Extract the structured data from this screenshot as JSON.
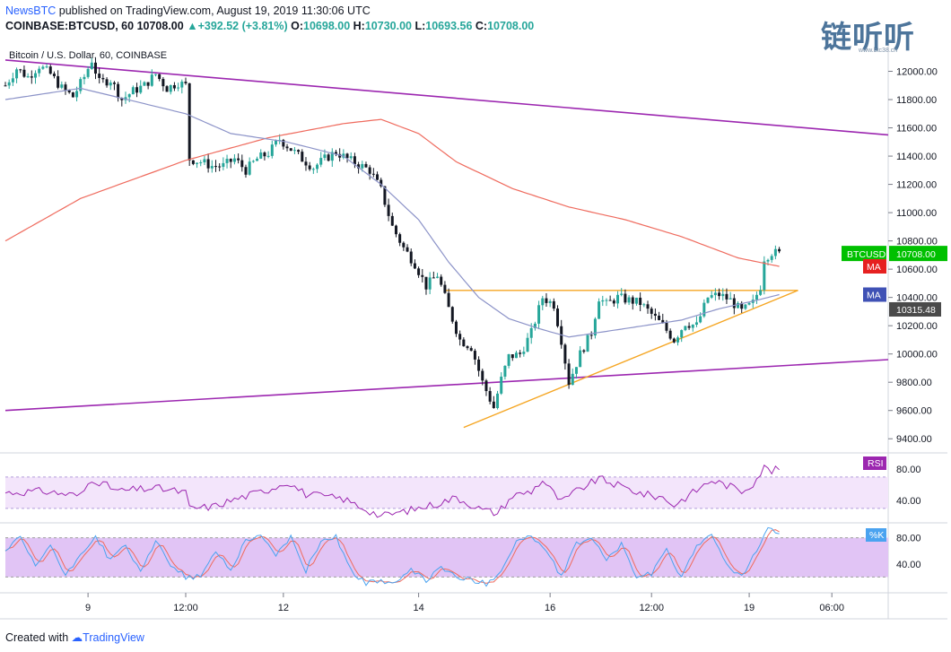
{
  "header": {
    "brand": "NewsBTC",
    "published": "published on TradingView.com, August 19, 2019 11:30:06 UTC",
    "symbol_line": "COINBASE:BTCUSD, 60",
    "price": "10708.00",
    "change": "+392.52 (+3.81%)",
    "open_label": "O:",
    "open": "10698.00",
    "high_label": "H:",
    "high": "10730.00",
    "low_label": "L:",
    "low": "10693.56",
    "close_label": "C:",
    "close": "10708.00"
  },
  "watermark": {
    "text": "链听听",
    "sub": "www.btc38.ch"
  },
  "footer": {
    "created_with": "Created with",
    "tradingview": "TradingView"
  },
  "colors": {
    "up_candle": "#26a69a",
    "down_candle": "#131722",
    "ma_fast": "#8c93c8",
    "ma_slow": "#ef6b5e",
    "channel": "#9c27b0",
    "triangle": "#f5a623",
    "rsi": "#9c27b0",
    "stoch_k": "#4aa3f0",
    "stoch_d": "#ef6b5e",
    "price_badge": "#00c000",
    "ma_badge_red": "#e62020",
    "ma_badge_blue": "#3f51b5",
    "rsi_badge": "#9c27b0",
    "k_badge": "#4aa3f0"
  },
  "chart_data": {
    "type": "candlestick",
    "title": "Bitcoin / U.S. Dollar, 60, COINBASE",
    "symbol": "BTCUSD",
    "ylim": [
      9300,
      12200
    ],
    "y_ticks": [
      12000,
      11800,
      11600,
      11400,
      11200,
      11000,
      10800,
      10600,
      10400,
      10200,
      10000,
      9800,
      9600,
      9400
    ],
    "y_tick_labels": [
      "12000.00",
      "11800.00",
      "11600.00",
      "11400.00",
      "11200.00",
      "11000.00",
      "10800.00",
      "10600.00",
      "10400.00",
      "10200.00",
      "10000.00",
      "9800.00",
      "9600.00",
      "9400.00"
    ],
    "x_index_range": [
      0,
      235
    ],
    "x_ticks": [
      {
        "label": "9",
        "index": 22
      },
      {
        "label": "12:00",
        "index": 48
      },
      {
        "label": "12",
        "index": 74
      },
      {
        "label": "14",
        "index": 110
      },
      {
        "label": "16",
        "index": 145
      },
      {
        "label": "12:00",
        "index": 172
      },
      {
        "label": "19",
        "index": 198
      },
      {
        "label": "06:00",
        "index": 220
      }
    ],
    "price_anchors": [
      [
        0,
        11900
      ],
      [
        3,
        12020
      ],
      [
        6,
        11960
      ],
      [
        9,
        12040
      ],
      [
        12,
        11980
      ],
      [
        15,
        11880
      ],
      [
        18,
        11820
      ],
      [
        21,
        11960
      ],
      [
        23,
        12080
      ],
      [
        25,
        11920
      ],
      [
        28,
        11940
      ],
      [
        31,
        11800
      ],
      [
        34,
        11860
      ],
      [
        37,
        11900
      ],
      [
        40,
        11980
      ],
      [
        43,
        11880
      ],
      [
        46,
        11920
      ],
      [
        48,
        11900
      ],
      [
        49,
        11380
      ],
      [
        52,
        11360
      ],
      [
        55,
        11330
      ],
      [
        58,
        11330
      ],
      [
        61,
        11380
      ],
      [
        64,
        11300
      ],
      [
        67,
        11380
      ],
      [
        70,
        11420
      ],
      [
        73,
        11520
      ],
      [
        76,
        11450
      ],
      [
        79,
        11380
      ],
      [
        82,
        11320
      ],
      [
        85,
        11380
      ],
      [
        88,
        11430
      ],
      [
        91,
        11380
      ],
      [
        94,
        11340
      ],
      [
        97,
        11300
      ],
      [
        100,
        11160
      ],
      [
        103,
        10900
      ],
      [
        106,
        10750
      ],
      [
        109,
        10640
      ],
      [
        112,
        10480
      ],
      [
        115,
        10560
      ],
      [
        118,
        10320
      ],
      [
        121,
        10100
      ],
      [
        124,
        10050
      ],
      [
        127,
        9800
      ],
      [
        130,
        9620
      ],
      [
        132,
        9820
      ],
      [
        134,
        9980
      ],
      [
        137,
        10000
      ],
      [
        140,
        10150
      ],
      [
        143,
        10400
      ],
      [
        146,
        10350
      ],
      [
        148,
        10100
      ],
      [
        150,
        9800
      ],
      [
        153,
        10000
      ],
      [
        156,
        10150
      ],
      [
        158,
        10400
      ],
      [
        160,
        10350
      ],
      [
        163,
        10400
      ],
      [
        166,
        10380
      ],
      [
        169,
        10360
      ],
      [
        172,
        10280
      ],
      [
        175,
        10200
      ],
      [
        178,
        10100
      ],
      [
        181,
        10220
      ],
      [
        184,
        10200
      ],
      [
        187,
        10400
      ],
      [
        190,
        10420
      ],
      [
        193,
        10380
      ],
      [
        196,
        10300
      ],
      [
        199,
        10360
      ],
      [
        201,
        10480
      ],
      [
        202,
        10680
      ],
      [
        204,
        10720
      ],
      [
        206,
        10708
      ]
    ],
    "ma_fast_anchors": [
      [
        0,
        11800
      ],
      [
        20,
        11880
      ],
      [
        48,
        11700
      ],
      [
        60,
        11560
      ],
      [
        75,
        11500
      ],
      [
        90,
        11400
      ],
      [
        100,
        11200
      ],
      [
        110,
        10950
      ],
      [
        118,
        10650
      ],
      [
        126,
        10400
      ],
      [
        134,
        10250
      ],
      [
        142,
        10180
      ],
      [
        150,
        10120
      ],
      [
        160,
        10160
      ],
      [
        170,
        10200
      ],
      [
        180,
        10240
      ],
      [
        190,
        10320
      ],
      [
        200,
        10380
      ],
      [
        206,
        10420
      ]
    ],
    "ma_slow_anchors": [
      [
        0,
        10800
      ],
      [
        20,
        11100
      ],
      [
        48,
        11370
      ],
      [
        70,
        11530
      ],
      [
        90,
        11630
      ],
      [
        100,
        11660
      ],
      [
        110,
        11560
      ],
      [
        120,
        11360
      ],
      [
        135,
        11170
      ],
      [
        150,
        11040
      ],
      [
        165,
        10950
      ],
      [
        180,
        10830
      ],
      [
        195,
        10680
      ],
      [
        206,
        10620
      ]
    ],
    "channel_upper": [
      [
        0,
        12080
      ],
      [
        235,
        11550
      ]
    ],
    "channel_lower": [
      [
        0,
        9600
      ],
      [
        235,
        9960
      ]
    ],
    "triangle_top": [
      [
        117,
        10450
      ],
      [
        211,
        10450
      ]
    ],
    "triangle_bottom": [
      [
        122,
        9480
      ],
      [
        211,
        10450
      ]
    ],
    "price_labels": [
      {
        "text": "BTCUSD",
        "value": "10708.00",
        "y": 10708
      },
      {
        "text": "MA",
        "y": 10620
      },
      {
        "text": "MA",
        "y": 10420
      },
      {
        "text": "10315.48",
        "y": 10315.48
      }
    ],
    "rsi": {
      "label": "RSI",
      "ylim": [
        15,
        95
      ],
      "band": [
        30,
        70
      ],
      "ticks": [
        80,
        40
      ],
      "tick_labels": [
        "80.00",
        "40.00"
      ],
      "anchors": [
        [
          0,
          50
        ],
        [
          10,
          52
        ],
        [
          20,
          46
        ],
        [
          23,
          68
        ],
        [
          30,
          52
        ],
        [
          40,
          56
        ],
        [
          48,
          50
        ],
        [
          49,
          30
        ],
        [
          55,
          32
        ],
        [
          60,
          40
        ],
        [
          70,
          54
        ],
        [
          75,
          64
        ],
        [
          80,
          48
        ],
        [
          90,
          42
        ],
        [
          100,
          20
        ],
        [
          108,
          28
        ],
        [
          115,
          36
        ],
        [
          120,
          44
        ],
        [
          127,
          28
        ],
        [
          131,
          24
        ],
        [
          135,
          46
        ],
        [
          140,
          52
        ],
        [
          143,
          66
        ],
        [
          148,
          38
        ],
        [
          152,
          52
        ],
        [
          158,
          68
        ],
        [
          165,
          56
        ],
        [
          170,
          48
        ],
        [
          175,
          44
        ],
        [
          178,
          34
        ],
        [
          183,
          50
        ],
        [
          188,
          66
        ],
        [
          193,
          58
        ],
        [
          196,
          52
        ],
        [
          199,
          62
        ],
        [
          202,
          82
        ],
        [
          204,
          78
        ],
        [
          206,
          80
        ]
      ]
    },
    "stoch": {
      "label": "%K",
      "ylim": [
        0,
        100
      ],
      "band": [
        20,
        80
      ],
      "ticks": [
        80,
        40
      ],
      "tick_labels": [
        "80.00",
        "40.00"
      ],
      "anchors": [
        [
          0,
          60
        ],
        [
          4,
          80
        ],
        [
          8,
          35
        ],
        [
          12,
          70
        ],
        [
          16,
          20
        ],
        [
          20,
          55
        ],
        [
          24,
          82
        ],
        [
          28,
          45
        ],
        [
          32,
          70
        ],
        [
          36,
          25
        ],
        [
          40,
          75
        ],
        [
          44,
          40
        ],
        [
          48,
          20
        ],
        [
          52,
          20
        ],
        [
          56,
          60
        ],
        [
          60,
          30
        ],
        [
          64,
          78
        ],
        [
          68,
          82
        ],
        [
          72,
          55
        ],
        [
          76,
          80
        ],
        [
          80,
          30
        ],
        [
          84,
          75
        ],
        [
          88,
          82
        ],
        [
          92,
          30
        ],
        [
          96,
          10
        ],
        [
          100,
          15
        ],
        [
          104,
          10
        ],
        [
          108,
          30
        ],
        [
          112,
          15
        ],
        [
          116,
          35
        ],
        [
          120,
          20
        ],
        [
          124,
          15
        ],
        [
          128,
          10
        ],
        [
          132,
          30
        ],
        [
          136,
          75
        ],
        [
          140,
          82
        ],
        [
          144,
          60
        ],
        [
          148,
          20
        ],
        [
          152,
          70
        ],
        [
          156,
          82
        ],
        [
          160,
          45
        ],
        [
          164,
          70
        ],
        [
          168,
          20
        ],
        [
          172,
          25
        ],
        [
          176,
          60
        ],
        [
          180,
          20
        ],
        [
          184,
          70
        ],
        [
          188,
          82
        ],
        [
          192,
          40
        ],
        [
          196,
          20
        ],
        [
          200,
          60
        ],
        [
          203,
          92
        ],
        [
          206,
          88
        ]
      ]
    }
  }
}
